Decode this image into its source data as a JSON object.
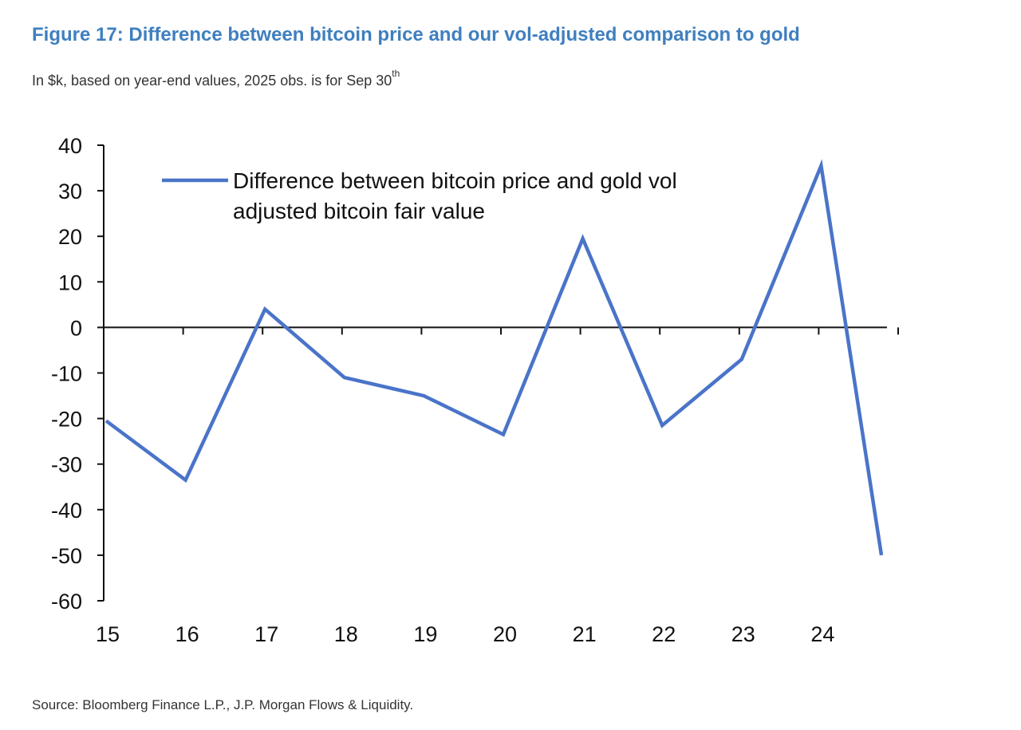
{
  "figure": {
    "title": "Figure 17: Difference between bitcoin price and our vol-adjusted comparison to gold",
    "subtitle": "In $k, based on year-end values, 2025 obs. is for Sep 30",
    "subtitle_sup": "th",
    "source": "Source: Bloomberg Finance L.P., J.P. Morgan Flows & Liquidity."
  },
  "colors": {
    "title": "#3f7fbf",
    "series": "#4a74c9",
    "axis": "#111111",
    "text": "#333333"
  },
  "chart_data": {
    "type": "line",
    "title": "",
    "xlabel": "",
    "ylabel": "",
    "ylim": [
      -60,
      40
    ],
    "y_ticks": [
      "40",
      "30",
      "20",
      "10",
      "0",
      "-10",
      "-20",
      "-30",
      "-40",
      "-50",
      "-60"
    ],
    "x_tick_labels": [
      "15",
      "16",
      "17",
      "18",
      "19",
      "20",
      "21",
      "22",
      "23",
      "24"
    ],
    "legend": {
      "position": "top-left",
      "lines": [
        "Difference between bitcoin price and gold vol",
        "adjusted bitcoin fair value"
      ]
    },
    "grid": false,
    "series": [
      {
        "name": "Difference between bitcoin price and gold vol adjusted bitcoin fair value",
        "x": [
          "15",
          "16",
          "17",
          "18",
          "19",
          "20",
          "21",
          "22",
          "23",
          "24",
          "Sep 30 2025"
        ],
        "values": [
          -20.5,
          -33.5,
          4,
          -11,
          -15,
          -23.5,
          19.5,
          -21.5,
          -7,
          35.5,
          -50
        ]
      }
    ]
  }
}
